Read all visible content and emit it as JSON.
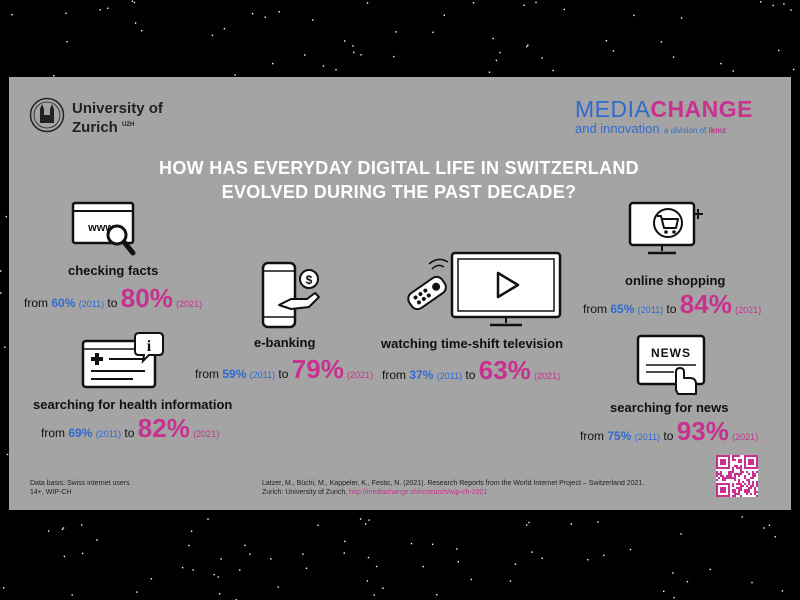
{
  "university": {
    "line1": "University of",
    "line2": "Zurich",
    "sup": "UZH"
  },
  "brand": {
    "media": "MEDIA",
    "change": "CHANGE",
    "and_innovation": "and innovation",
    "division": "a division of",
    "ikmz": "ikmz",
    "colors": {
      "blue": "#2f6ad0",
      "pink": "#c8318f"
    }
  },
  "title": {
    "line1": "HOW HAS EVERYDAY DIGITAL LIFE IN SWITZERLAND",
    "line2": "EVOLVED DURING THE PAST DECADE?"
  },
  "items": [
    {
      "label": "checking facts",
      "icon": "www-search-icon",
      "from": "from",
      "to": "to",
      "v2011": "60%",
      "y2011": "(2011)",
      "v2021": "80%",
      "y2021": "(2021)"
    },
    {
      "label": "e-banking",
      "icon": "mobile-banking-icon",
      "from": "from",
      "to": "to",
      "v2011": "59%",
      "y2011": "(2011)",
      "v2021": "79%",
      "y2021": "(2021)"
    },
    {
      "label": "watching time-shift television",
      "icon": "tv-remote-icon",
      "from": "from",
      "to": "to",
      "v2011": "37%",
      "y2011": "(2011)",
      "v2021": "63%",
      "y2021": "(2021)"
    },
    {
      "label": "online shopping",
      "icon": "shopping-cart-icon",
      "from": "from",
      "to": "to",
      "v2011": "65%",
      "y2011": "(2011)",
      "v2021": "84%",
      "y2021": "(2021)"
    },
    {
      "label": "searching for health information",
      "icon": "health-info-icon",
      "from": "from",
      "to": "to",
      "v2011": "69%",
      "y2011": "(2011)",
      "v2021": "82%",
      "y2021": "(2021)"
    },
    {
      "label": "searching for news",
      "icon": "news-icon",
      "from": "from",
      "to": "to",
      "v2011": "75%",
      "y2011": "(2011)",
      "v2021": "93%",
      "y2021": "(2021)"
    }
  ],
  "footer": {
    "databasis_line1": "Data basis: Swiss internet users",
    "databasis_line2": "14+, WIP-CH",
    "citation_line1": "Latzer, M., Büchi, M., Kappeler, K., Festic, N. (2021). Research Reports from the World Internet Project – Switzerland 2021.",
    "citation_line2": "Zurich: University of Zurich.",
    "citation_link": "http://mediachange.ch/research/wip-ch-2021"
  }
}
